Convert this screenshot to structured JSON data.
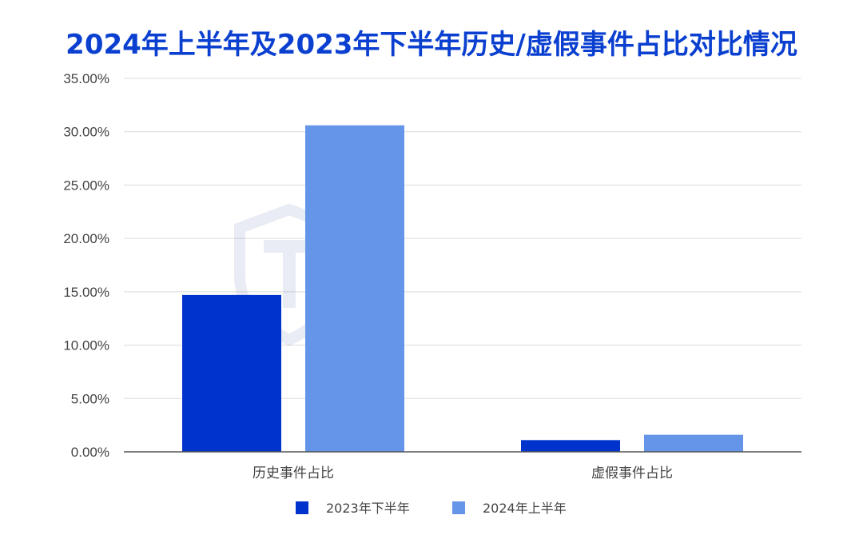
{
  "chart_data": {
    "type": "bar",
    "title": "2024年上半年及2023年下半年历史/虚假事件占比对比情况",
    "categories": [
      "历史事件占比",
      "虚假事件占比"
    ],
    "series": [
      {
        "name": "2023年下半年",
        "values": [
          14.7,
          1.1
        ],
        "color": "#0033cc"
      },
      {
        "name": "2024年上半年",
        "values": [
          30.6,
          1.6
        ],
        "color": "#6495e8"
      }
    ],
    "ylim": [
      0,
      35
    ],
    "y_ticks": [
      "0.00%",
      "5.00%",
      "10.00%",
      "15.00%",
      "20.00%",
      "25.00%",
      "30.00%",
      "35.00%"
    ],
    "grid": true,
    "legend_position": "bottom"
  }
}
